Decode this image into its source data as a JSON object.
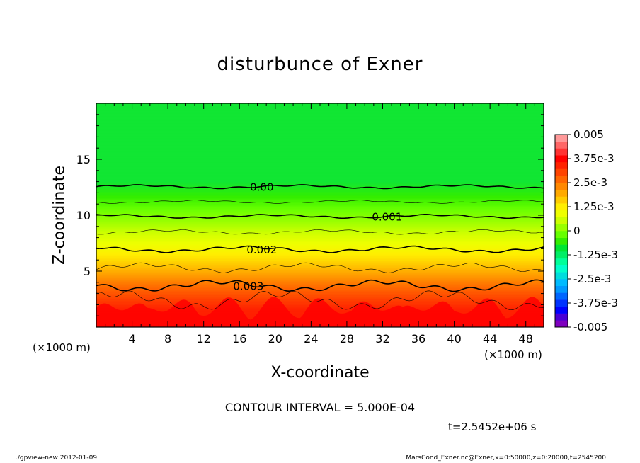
{
  "chart_data": {
    "type": "contourf",
    "title": "disturbunce of Exner",
    "xlabel": "X-coordinate",
    "ylabel": "Z-coordinate",
    "x_unit_left": "(×1000 m)",
    "x_unit_right": "(×1000 m)",
    "xlim": [
      0,
      50
    ],
    "ylim": [
      0,
      20
    ],
    "x_ticks": [
      4,
      8,
      12,
      16,
      20,
      24,
      28,
      32,
      36,
      40,
      44,
      48
    ],
    "y_ticks": [
      5,
      10,
      15
    ],
    "colorbar": {
      "min": -0.005,
      "max": 0.005,
      "labels": [
        "0.005",
        "3.75e-3",
        "2.5e-3",
        "1.25e-3",
        "0",
        "-1.25e-3",
        "-2.5e-3",
        "-3.75e-3",
        "-0.005"
      ],
      "colors": [
        "#7f00bf",
        "#4a00d4",
        "#0000ff",
        "#0033ff",
        "#0066ff",
        "#0099ff",
        "#00bbff",
        "#00dddd",
        "#00ffcc",
        "#00ff99",
        "#00ee66",
        "#00e633",
        "#33ee00",
        "#66ff00",
        "#99ff00",
        "#ccff00",
        "#eeff00",
        "#ffee00",
        "#ffcc00",
        "#ffaa00",
        "#ff8800",
        "#ff6600",
        "#ff4400",
        "#ff2200",
        "#ff0000",
        "#ff3333",
        "#ff6666",
        "#ff9999"
      ]
    },
    "contour_labels": [
      {
        "text": "0.00",
        "x": 18.5,
        "z": 12.55
      },
      {
        "text": "0.001",
        "x": 32.5,
        "z": 9.9
      },
      {
        "text": "0.002",
        "x": 18.5,
        "z": 6.95
      },
      {
        "text": "0.003",
        "x": 17.0,
        "z": 3.7
      }
    ],
    "contour_interval": "CONTOUR INTERVAL = 5.000E-04",
    "time": "t=2.5452e+06 s"
  },
  "footer": {
    "left": "./gpview-new  2012-01-09",
    "right": "MarsCond_Exner.nc@Exner,x=0:50000,z=0:20000,t=2545200"
  },
  "colors": {
    "frame": "#000000",
    "background": "#ffffff"
  }
}
